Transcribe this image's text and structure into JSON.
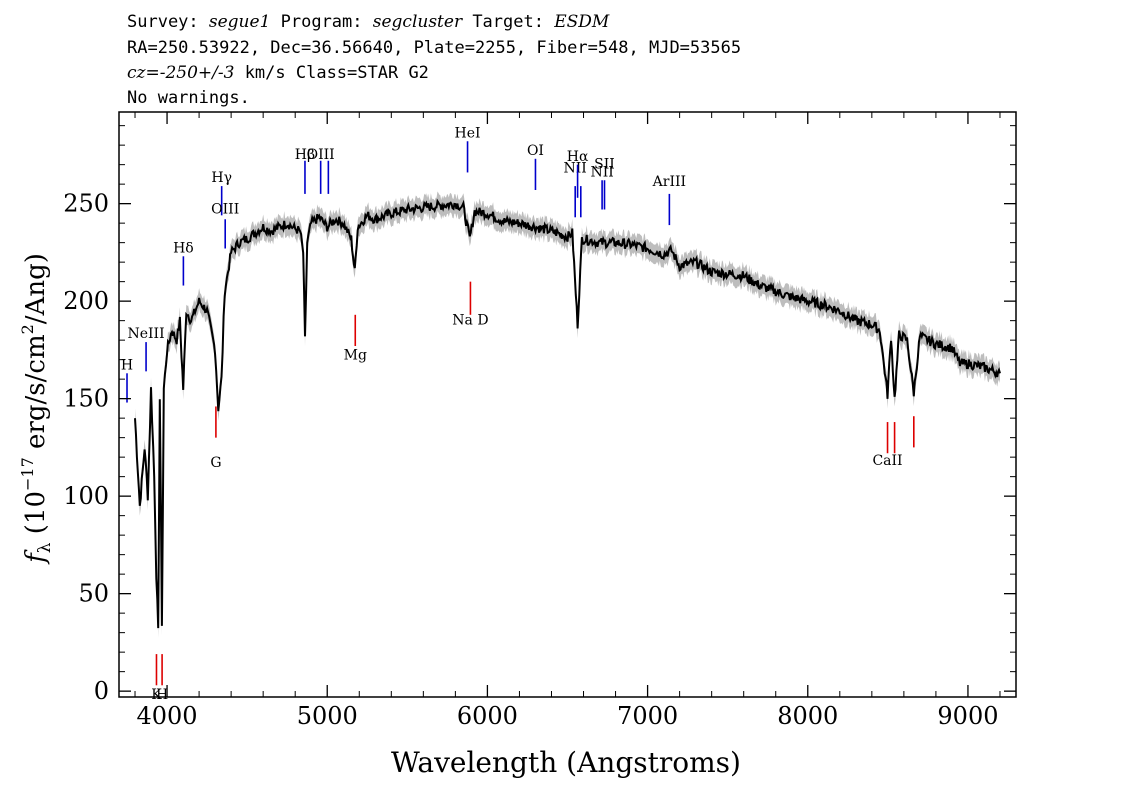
{
  "header": {
    "line1": {
      "survey_label": "Survey: ",
      "survey": "segue1",
      "program_label": " Program: ",
      "program": "segcluster",
      "target_label": " Target: ",
      "target": "ESDM"
    },
    "line2": "RA=250.53922, Dec=36.56640, Plate=2255, Fiber=548, MJD=53565",
    "line3": {
      "cz": "cz=-250+/-3",
      "rest": " km/s Class=STAR G2"
    },
    "line4": "No warnings."
  },
  "chart_data": {
    "type": "line",
    "xlabel": "Wavelength (Angstroms)",
    "ylabel": "f_λ (10^-17 erg/s/cm^2/Ang)",
    "xlim": [
      3700,
      9300
    ],
    "ylim": [
      -3,
      297
    ],
    "xticks": [
      4000,
      5000,
      6000,
      7000,
      8000,
      9000
    ],
    "yticks": [
      0,
      50,
      100,
      150,
      200,
      250
    ],
    "grid": false,
    "series": [
      {
        "color": "#000000",
        "x": [
          3800,
          3830,
          3860,
          3880,
          3900,
          3920,
          3933,
          3945,
          3955,
          3968,
          3980,
          4000,
          4030,
          4060,
          4080,
          4101,
          4120,
          4150,
          4200,
          4250,
          4300,
          4320,
          4340,
          4360,
          4380,
          4400,
          4450,
          4500,
          4550,
          4600,
          4650,
          4700,
          4750,
          4800,
          4830,
          4850,
          4861,
          4875,
          4900,
          4950,
          5000,
          5050,
          5100,
          5150,
          5172,
          5190,
          5250,
          5300,
          5400,
          5500,
          5600,
          5700,
          5800,
          5850,
          5890,
          5920,
          6000,
          6100,
          6200,
          6300,
          6400,
          6500,
          6530,
          6563,
          6590,
          6650,
          6700,
          6800,
          6900,
          7000,
          7100,
          7150,
          7200,
          7300,
          7400,
          7500,
          7600,
          7700,
          7800,
          7900,
          8000,
          8100,
          8200,
          8300,
          8400,
          8450,
          8498,
          8520,
          8542,
          8570,
          8620,
          8662,
          8700,
          8800,
          8900,
          8950,
          9000,
          9100,
          9200
        ],
        "y": [
          140,
          95,
          125,
          100,
          155,
          110,
          60,
          30,
          150,
          35,
          155,
          175,
          185,
          180,
          190,
          155,
          195,
          190,
          200,
          195,
          175,
          145,
          160,
          205,
          215,
          225,
          230,
          232,
          235,
          238,
          236,
          238,
          240,
          237,
          236,
          225,
          180,
          230,
          240,
          243,
          238,
          242,
          240,
          232,
          215,
          238,
          244,
          242,
          245,
          247,
          248,
          249,
          250,
          248,
          232,
          246,
          245,
          241,
          240,
          238,
          236,
          233,
          235,
          188,
          232,
          231,
          230,
          230,
          229,
          227,
          224,
          226,
          218,
          220,
          215,
          214,
          213,
          208,
          205,
          202,
          200,
          198,
          195,
          190,
          188,
          185,
          152,
          182,
          150,
          183,
          180,
          153,
          182,
          178,
          176,
          168,
          168,
          166,
          163
        ]
      }
    ],
    "error_band_color": "#bdbdbd",
    "line_markers": [
      {
        "label": "H",
        "wave": 3750,
        "color": "#0000cc",
        "y_line": [
          148,
          163
        ],
        "y_label": 165
      },
      {
        "label": "NeIII",
        "wave": 3869,
        "color": "#0000cc",
        "y_line": [
          164,
          179
        ],
        "y_label": 181
      },
      {
        "label": "Hδ",
        "wave": 4102,
        "color": "#0000cc",
        "y_line": [
          208,
          223
        ],
        "y_label": 225
      },
      {
        "label": "Hγ",
        "wave": 4341,
        "color": "#0000cc",
        "y_line": [
          244,
          259
        ],
        "y_label": 261
      },
      {
        "label": "OIII",
        "wave": 4363,
        "color": "#0000cc",
        "y_line": [
          227,
          242
        ],
        "y_label": 245
      },
      {
        "label": "Hβ",
        "wave": 4861,
        "color": "#0000cc",
        "y_line": [
          255,
          272
        ],
        "y_label": 273
      },
      {
        "label": "OIII",
        "wave": 4959,
        "color": "#0000cc",
        "y_line": [
          255,
          272
        ],
        "y_label": 273
      },
      {
        "label": "OIII",
        "wave": 5007,
        "color": "#0000cc",
        "y_line": [
          255,
          272
        ],
        "y_label": null
      },
      {
        "label": "HeI",
        "wave": 5876,
        "color": "#0000cc",
        "y_line": [
          266,
          282
        ],
        "y_label": 284
      },
      {
        "label": "OI",
        "wave": 6300,
        "color": "#0000cc",
        "y_line": [
          257,
          273
        ],
        "y_label": 275
      },
      {
        "label": "NII",
        "wave": 6548,
        "color": "#0000cc",
        "y_line": [
          243,
          259
        ],
        "y_label": 266
      },
      {
        "label": "Hα",
        "wave": 6563,
        "color": "#0000cc",
        "y_line": [
          253,
          270
        ],
        "y_label": 272
      },
      {
        "label": "NII",
        "wave": 6583,
        "color": "#0000cc",
        "y_line": [
          243,
          259
        ],
        "y_label": null
      },
      {
        "label": "NII",
        "wave": 6716,
        "color": "#0000cc",
        "y_line": [
          247,
          262
        ],
        "y_label": 264
      },
      {
        "label": "SII",
        "wave": 6731,
        "color": "#0000cc",
        "y_line": [
          247,
          262
        ],
        "y_label": 268
      },
      {
        "label": "ArIII",
        "wave": 7136,
        "color": "#0000cc",
        "y_line": [
          239,
          255
        ],
        "y_label": 259
      },
      {
        "label": "K",
        "wave": 3934,
        "color": "#dd0000",
        "y_line": [
          3,
          19
        ],
        "y_label": -4
      },
      {
        "label": "H",
        "wave": 3969,
        "color": "#dd0000",
        "y_line": [
          3,
          19
        ],
        "y_label": -4
      },
      {
        "label": "G",
        "wave": 4305,
        "color": "#dd0000",
        "y_line": [
          130,
          146
        ],
        "y_label": 115
      },
      {
        "label": "Mg",
        "wave": 5175,
        "color": "#dd0000",
        "y_line": [
          177,
          193
        ],
        "y_label": 170
      },
      {
        "label": "Na  D",
        "wave": 5894,
        "color": "#dd0000",
        "y_line": [
          193,
          210
        ],
        "y_label": 188
      },
      {
        "label": "CaII",
        "wave": 8498,
        "color": "#dd0000",
        "y_line": [
          122,
          138
        ],
        "y_label": 116
      },
      {
        "label": "CaII",
        "wave": 8542,
        "color": "#dd0000",
        "y_line": [
          122,
          138
        ],
        "y_label": null
      },
      {
        "label": "CaII",
        "wave": 8662,
        "color": "#dd0000",
        "y_line": [
          125,
          141
        ],
        "y_label": null
      }
    ]
  }
}
